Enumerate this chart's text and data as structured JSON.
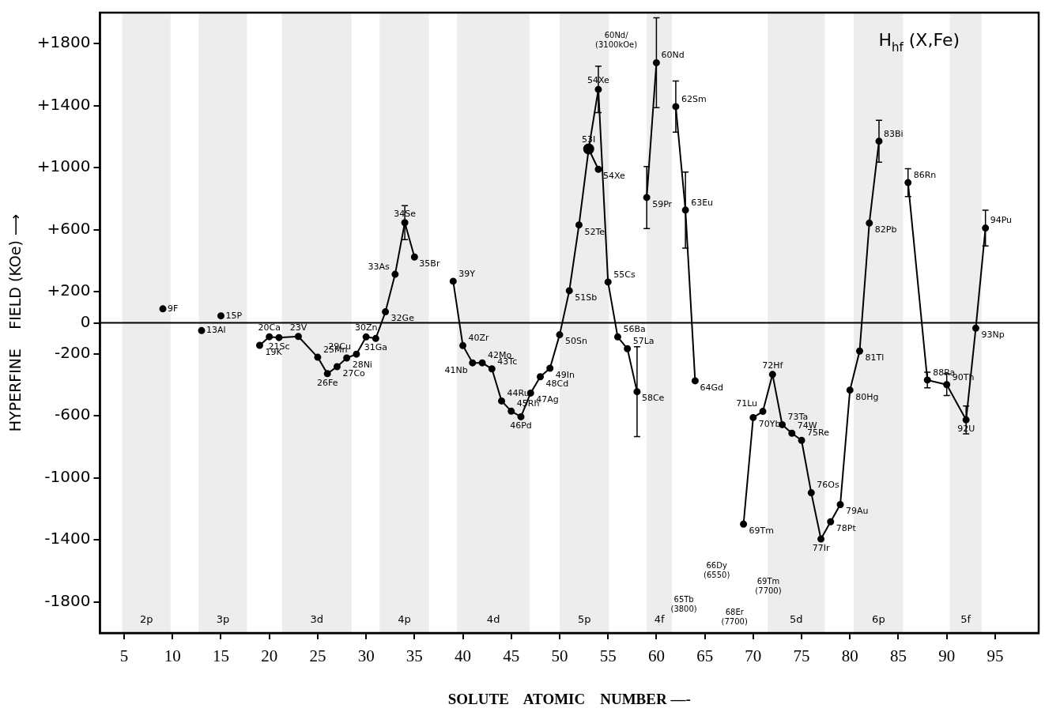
{
  "chart_data": {
    "type": "line",
    "title": "H$_{hf}$ (X,Fe)",
    "xlabel": "SOLUTE    ATOMIC    NUMBER —-",
    "ylabel": "HYPERFINE    FIELD (KOe) ⟶",
    "xlim": [
      2.5,
      99.5
    ],
    "xticks": [
      5,
      10,
      15,
      20,
      25,
      30,
      35,
      40,
      45,
      50,
      55,
      60,
      65,
      70,
      75,
      80,
      85,
      90,
      95
    ],
    "ylim": [
      -2000,
      2000
    ],
    "yticks": [
      {
        "value": 1800,
        "label": "+1800"
      },
      {
        "value": 1400,
        "label": "+1400"
      },
      {
        "value": 1000,
        "label": "+1000"
      },
      {
        "value": 600,
        "label": "+600"
      },
      {
        "value": 200,
        "label": "+200"
      },
      0,
      -200,
      -600,
      -1000,
      -1400,
      -1800
    ],
    "marker": "circle",
    "series": [
      {
        "type": "scatter",
        "color": "#000000",
        "x": [
          9,
          13,
          15
        ],
        "values": [
          90,
          -50,
          45
        ]
      },
      {
        "color": "#000000",
        "x": [
          19,
          20,
          21,
          23,
          25,
          26,
          27,
          28,
          29,
          30,
          31,
          32,
          33,
          34,
          35
        ],
        "values": [
          -145,
          -90,
          -95,
          -88,
          -222,
          -328,
          -283,
          -227,
          -202,
          -91,
          -101,
          71,
          313,
          646,
          424
        ],
        "errors": [
          null,
          null,
          null,
          null,
          null,
          null,
          null,
          null,
          null,
          null,
          null,
          null,
          null,
          110,
          null
        ]
      },
      {
        "color": "#000000",
        "x": [
          39,
          40,
          41,
          42,
          43,
          44,
          45,
          46,
          47,
          48,
          49,
          50,
          51,
          52,
          53,
          54,
          55,
          56,
          57,
          58
        ],
        "values": [
          268,
          -147,
          -258,
          -258,
          -297,
          -504,
          -570,
          -606,
          -453,
          -348,
          -293,
          -77,
          207,
          631,
          1121,
          1505,
          263,
          -91,
          -167,
          -444
        ],
        "errors": [
          null,
          null,
          null,
          null,
          null,
          null,
          null,
          null,
          null,
          null,
          null,
          null,
          null,
          null,
          null,
          150,
          null,
          null,
          null,
          290
        ]
      },
      {
        "color": "#000000",
        "x": [
          53,
          54
        ],
        "values": [
          1121,
          990
        ]
      },
      {
        "color": "#000000",
        "x": [
          59,
          60
        ],
        "values": [
          808,
          1677
        ],
        "errors": [
          200,
          290
        ]
      },
      {
        "color": "#000000",
        "x": [
          62,
          63,
          64
        ],
        "values": [
          1394,
          727,
          -374
        ],
        "errors": [
          165,
          245,
          null
        ]
      },
      {
        "color": "#000000",
        "x": [
          69,
          70,
          71,
          72,
          73,
          74,
          75,
          76,
          77,
          78,
          79,
          80,
          81,
          82,
          83
        ],
        "values": [
          -1298,
          -611,
          -571,
          -333,
          -657,
          -712,
          -758,
          -1096,
          -1394,
          -1283,
          -1172,
          -434,
          -182,
          643,
          1171
        ],
        "errors": [
          null,
          null,
          null,
          null,
          null,
          null,
          null,
          null,
          null,
          null,
          null,
          null,
          null,
          null,
          135
        ]
      },
      {
        "color": "#000000",
        "x": [
          86,
          88,
          90,
          92,
          93,
          94
        ],
        "values": [
          904,
          -369,
          -399,
          -626,
          -35,
          611
        ],
        "errors": [
          90,
          50,
          70,
          90,
          null,
          115
        ]
      }
    ],
    "ref_lines": [
      {
        "axis": "y",
        "value": 0,
        "color": "#000000"
      }
    ],
    "bands": [
      {
        "axis": "x",
        "from": 4.8,
        "to": 9.8,
        "label": "2p"
      },
      {
        "axis": "x",
        "from": 12.7,
        "to": 17.7,
        "label": "3p"
      },
      {
        "axis": "x",
        "from": 21.3,
        "to": 28.5,
        "label": "3d"
      },
      {
        "axis": "x",
        "from": 31.4,
        "to": 36.5,
        "label": "4p"
      },
      {
        "axis": "x",
        "from": 39.4,
        "to": 46.9,
        "label": "4d"
      },
      {
        "axis": "x",
        "from": 50,
        "to": 55.1,
        "label": "5p"
      },
      {
        "axis": "x",
        "from": 59,
        "to": 61.6,
        "label": "4f"
      },
      {
        "axis": "x",
        "from": 71.5,
        "to": 77.4,
        "label": "5d"
      },
      {
        "axis": "x",
        "from": 80.4,
        "to": 85.5,
        "label": "6p"
      },
      {
        "axis": "x",
        "from": 90.3,
        "to": 93.6,
        "label": "5f"
      }
    ],
    "annotations": [
      {
        "text": "9F",
        "x": 9,
        "y": 90
      },
      {
        "text": "13Al",
        "x": 13,
        "y": -50
      },
      {
        "text": "15P",
        "x": 15,
        "y": 45
      },
      {
        "text": "19K",
        "x": 19,
        "y": -145
      },
      {
        "text": "20Ca",
        "x": 20,
        "y": -90
      },
      {
        "text": "21Sc",
        "x": 21,
        "y": -95
      },
      {
        "text": "23V",
        "x": 23,
        "y": -88
      },
      {
        "text": "25Mn",
        "x": 25,
        "y": -222
      },
      {
        "text": "26Fe",
        "x": 26,
        "y": -328
      },
      {
        "text": "27Co",
        "x": 27,
        "y": -283
      },
      {
        "text": "28Ni",
        "x": 28,
        "y": -227
      },
      {
        "text": "29Cu",
        "x": 29,
        "y": -202
      },
      {
        "text": "30Zn",
        "x": 30,
        "y": -91
      },
      {
        "text": "31Ga",
        "x": 31,
        "y": -101
      },
      {
        "text": "32Ge",
        "x": 32,
        "y": 71
      },
      {
        "text": "33As",
        "x": 33,
        "y": 313
      },
      {
        "text": "34Se",
        "x": 34,
        "y": 646
      },
      {
        "text": "35Br",
        "x": 35,
        "y": 424
      },
      {
        "text": "39Y",
        "x": 39,
        "y": 268
      },
      {
        "text": "40Zr",
        "x": 40,
        "y": -147
      },
      {
        "text": "41Nb",
        "x": 41,
        "y": -258
      },
      {
        "text": "42Mo",
        "x": 42,
        "y": -258
      },
      {
        "text": "43Tc",
        "x": 43,
        "y": -297
      },
      {
        "text": "44Ru",
        "x": 44,
        "y": -504
      },
      {
        "text": "45Rh",
        "x": 45,
        "y": -570
      },
      {
        "text": "46Pd",
        "x": 46,
        "y": -606
      },
      {
        "text": "47Ag",
        "x": 47,
        "y": -453
      },
      {
        "text": "48Cd",
        "x": 48,
        "y": -348
      },
      {
        "text": "49In",
        "x": 49,
        "y": -293
      },
      {
        "text": "50Sn",
        "x": 50,
        "y": -77
      },
      {
        "text": "51Sb",
        "x": 51,
        "y": 207
      },
      {
        "text": "52Te",
        "x": 52,
        "y": 631
      },
      {
        "text": "53I",
        "x": 53,
        "y": 1121
      },
      {
        "text": "54Xe",
        "x": 54,
        "y": 1505
      },
      {
        "text": "54Xe",
        "x": 54,
        "y": 990
      },
      {
        "text": "55Cs",
        "x": 55,
        "y": 263
      },
      {
        "text": "56Ba",
        "x": 56,
        "y": -91
      },
      {
        "text": "57La",
        "x": 57,
        "y": -167
      },
      {
        "text": "58Ce",
        "x": 58,
        "y": -444
      },
      {
        "text": "59Pr",
        "x": 59,
        "y": 808
      },
      {
        "text": "60Nd",
        "x": 60,
        "y": 1677
      },
      {
        "text": "62Sm",
        "x": 62,
        "y": 1394
      },
      {
        "text": "63Eu",
        "x": 63,
        "y": 727
      },
      {
        "text": "64Gd",
        "x": 64,
        "y": -374
      },
      {
        "text": "69Tm",
        "x": 69,
        "y": -1298
      },
      {
        "text": "70Yb",
        "x": 70,
        "y": -611
      },
      {
        "text": "71Lu",
        "x": 71,
        "y": -571
      },
      {
        "text": "72Hf",
        "x": 72,
        "y": -333
      },
      {
        "text": "73Ta",
        "x": 73,
        "y": -657
      },
      {
        "text": "74W",
        "x": 74,
        "y": -712
      },
      {
        "text": "75Re",
        "x": 75,
        "y": -758
      },
      {
        "text": "76Os",
        "x": 76,
        "y": -1096
      },
      {
        "text": "77Ir",
        "x": 77,
        "y": -1394
      },
      {
        "text": "78Pt",
        "x": 78,
        "y": -1283
      },
      {
        "text": "79Au",
        "x": 79,
        "y": -1172
      },
      {
        "text": "80Hg",
        "x": 80,
        "y": -434
      },
      {
        "text": "81Tl",
        "x": 81,
        "y": -182
      },
      {
        "text": "82Pb",
        "x": 82,
        "y": 643
      },
      {
        "text": "83Bi",
        "x": 83,
        "y": 1171
      },
      {
        "text": "86Rn",
        "x": 86,
        "y": 904
      },
      {
        "text": "88Ra",
        "x": 88,
        "y": -369
      },
      {
        "text": "90Th",
        "x": 90,
        "y": -399
      },
      {
        "text": "92U",
        "x": 92,
        "y": -626
      },
      {
        "text": "93Np",
        "x": 93,
        "y": -35
      },
      {
        "text": "94Pu",
        "x": 94,
        "y": 611
      },
      "60Nd/\n(3100kOe)",
      "66Dy\n(6550)",
      "65Tb\n(3800)",
      "68Er\n(7700)",
      "69Tm\n(7700)"
    ]
  }
}
